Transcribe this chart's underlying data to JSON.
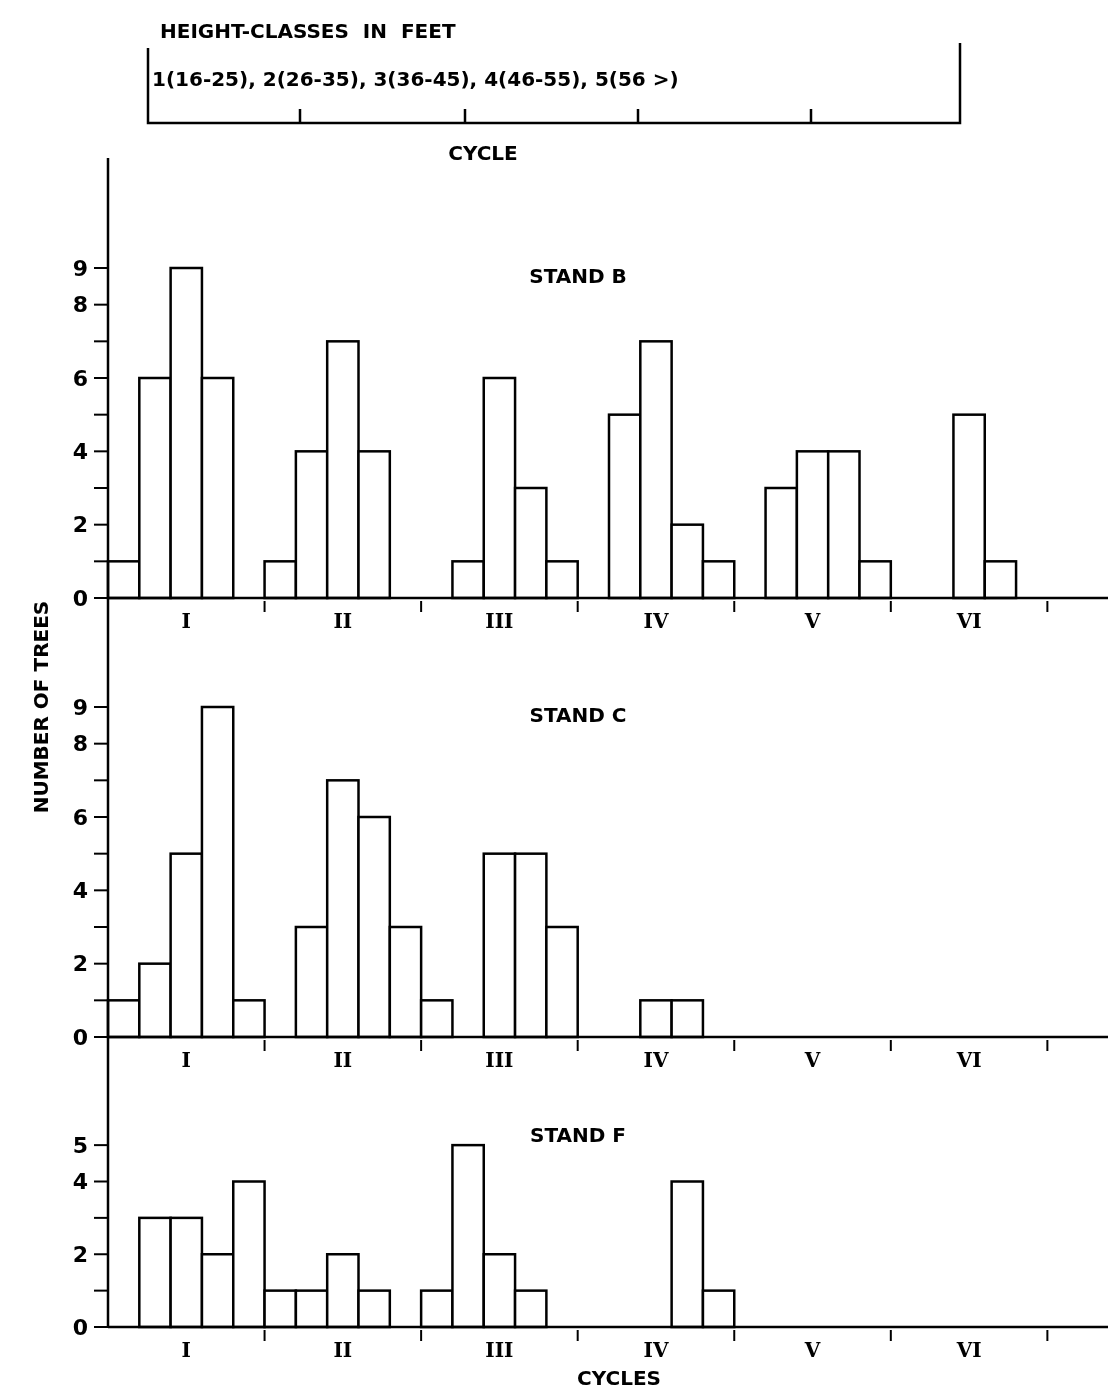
{
  "chart_data": [
    {
      "type": "bar",
      "title": "STAND B",
      "annotations": [
        "HEIGHT-CLASSES  IN  FEET",
        "1(16-25), 2(26-35), 3(36-45), 4(46-55), 5(56 >)",
        "CYCLE"
      ],
      "categories": [
        null,
        null,
        "I",
        null,
        null,
        null,
        null,
        "II",
        null,
        null,
        null,
        null,
        "III",
        null,
        null,
        null,
        null,
        "IV",
        null,
        null,
        null,
        null,
        "V",
        null,
        null,
        null,
        null,
        "VI",
        null,
        null,
        null,
        null
      ],
      "values": [
        1,
        6,
        9,
        6,
        0,
        1,
        4,
        7,
        4,
        0,
        0,
        1,
        6,
        3,
        1,
        0,
        5,
        7,
        2,
        1,
        0,
        3,
        4,
        4,
        1,
        0,
        0,
        5,
        1,
        0,
        0,
        0
      ],
      "color": "#000000",
      "ylim": [
        0,
        12
      ],
      "yticks": [
        0,
        {
          "value": 1,
          "label": null
        },
        2,
        {
          "value": 3,
          "label": null
        },
        4,
        {
          "value": 5,
          "label": null
        },
        6,
        {
          "value": 7,
          "label": null
        },
        8,
        9
      ]
    },
    {
      "type": "bar",
      "title": "STAND C",
      "ylabel": "NUMBER OF TREES",
      "categories": [
        null,
        null,
        "I",
        null,
        null,
        null,
        null,
        "II",
        null,
        null,
        null,
        null,
        "III",
        null,
        null,
        null,
        null,
        "IV",
        null,
        null,
        null,
        null,
        "V",
        null,
        null,
        null,
        null,
        "VI",
        null,
        null,
        null,
        null
      ],
      "values": [
        1,
        2,
        5,
        9,
        1,
        0,
        3,
        7,
        6,
        3,
        1,
        0,
        5,
        5,
        3,
        0,
        0,
        1,
        1,
        0,
        0,
        0,
        0,
        0,
        0,
        0,
        0,
        0,
        0,
        0,
        0,
        0
      ],
      "color": "#000000",
      "ylim": [
        0,
        12
      ],
      "yticks": [
        0,
        {
          "value": 1,
          "label": null
        },
        2,
        {
          "value": 3,
          "label": null
        },
        4,
        {
          "value": 5,
          "label": null
        },
        6,
        {
          "value": 7,
          "label": null
        },
        8,
        9
      ]
    },
    {
      "type": "bar",
      "title": "STAND F",
      "xlabel": "CYCLES",
      "categories": [
        null,
        null,
        "I",
        null,
        null,
        null,
        null,
        "II",
        null,
        null,
        null,
        null,
        "III",
        null,
        null,
        null,
        null,
        "IV",
        null,
        null,
        null,
        null,
        "V",
        null,
        null,
        null,
        null,
        "VI",
        null,
        null,
        null,
        null
      ],
      "values": [
        0,
        3,
        3,
        2,
        4,
        1,
        1,
        2,
        1,
        0,
        1,
        5,
        2,
        1,
        0,
        0,
        0,
        0,
        4,
        1,
        0,
        0,
        0,
        0,
        0,
        0,
        0,
        0,
        0,
        0,
        0,
        0
      ],
      "color": "#000000",
      "ylim": [
        0,
        8
      ],
      "yticks": [
        0,
        {
          "value": 1,
          "label": null
        },
        2,
        {
          "value": 3,
          "label": null
        },
        4,
        5
      ]
    }
  ]
}
